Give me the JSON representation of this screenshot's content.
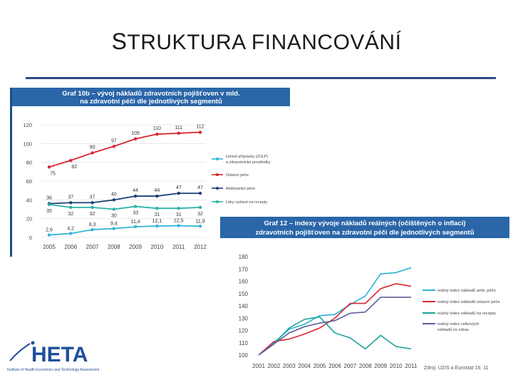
{
  "slide": {
    "title_first": "S",
    "title_rest": "TRUKTURA FINANCOVÁNÍ"
  },
  "logo": {
    "name": "HETA",
    "subtitle": "Institute of Health Economics and Technology Assessment"
  },
  "chart_data": [
    {
      "type": "line",
      "title": "Graf 10b – vývoj nákladů zdravotních pojišťoven v mld. na zdravotní péči dle jednotlivých segmentů",
      "x": [
        "2005",
        "2006",
        "2007",
        "2008",
        "2009",
        "2010",
        "2011",
        "2012"
      ],
      "ylim": [
        0,
        120
      ],
      "yticks": [
        0,
        20,
        40,
        60,
        80,
        100,
        120
      ],
      "grid": true,
      "legend_placement": "right",
      "series": [
        {
          "name": "Ústavní péče",
          "color": "#d7262f",
          "values": [
            75,
            82,
            90,
            97,
            105,
            110,
            111,
            112
          ]
        },
        {
          "name": "Ambulantní péče",
          "color": "#1f3f7a",
          "values": [
            36,
            37,
            37,
            40,
            44,
            44,
            47,
            47
          ]
        },
        {
          "name": "Léky vydané na recepty",
          "color": "#2ab3a6",
          "values": [
            35,
            32,
            32,
            30,
            33,
            31,
            31,
            32
          ]
        },
        {
          "name": "Léčivé přípravky (ZULP) a zdravotnické prostředky",
          "color": "#33b5d8",
          "values": [
            2.6,
            4.2,
            8.3,
            9.4,
            11.4,
            12.1,
            12.5,
            11.9
          ]
        }
      ],
      "data_labels": [
        {
          "series": 0,
          "labels": [
            "75",
            "82",
            "90",
            "97",
            "105",
            "110",
            "111",
            "112"
          ]
        },
        {
          "series": 1,
          "labels": [
            "36",
            "37",
            "37",
            "40",
            "44",
            "44",
            "47",
            "47"
          ]
        },
        {
          "series": 2,
          "labels": [
            "35",
            "32",
            "32",
            "30",
            "33",
            "31",
            "31",
            "32"
          ]
        },
        {
          "series": 3,
          "labels": [
            "2,6",
            "4,2",
            "8,3",
            "9,4",
            "11,4",
            "12,1",
            "12,5",
            "11,9"
          ]
        }
      ]
    },
    {
      "type": "line",
      "title": "Graf 12 – indexy vývoje nákladů reálných (očištěných o inflaci) zdravotních pojišťoven na zdravotní péči dle jednotlivých segmentů",
      "x": [
        "2001",
        "2002",
        "2003",
        "2004",
        "2005",
        "2006",
        "2007",
        "2008",
        "2009",
        "2010",
        "2011"
      ],
      "ylim": [
        100,
        180
      ],
      "yticks": [
        100,
        110,
        120,
        130,
        140,
        150,
        160,
        170,
        180
      ],
      "grid": false,
      "legend_placement": "right",
      "source": "Zdroj: ÚZIS a Eurostat 16. 11",
      "series": [
        {
          "name": "reálný index nákladů amb. péče",
          "color": "#2ab3d6",
          "values": [
            100,
            110,
            121,
            125,
            132,
            133,
            141,
            148,
            166,
            167,
            171
          ]
        },
        {
          "name": "reálný index nákladů ústavní péče",
          "color": "#d7262f",
          "values": [
            100,
            111,
            113,
            117,
            122,
            130,
            142,
            142,
            154,
            158,
            156
          ]
        },
        {
          "name": "reálný index nákladů na recepty",
          "color": "#1aa596",
          "values": [
            100,
            109,
            122,
            129,
            131,
            118,
            114,
            105,
            116,
            107,
            105
          ]
        },
        {
          "name": "reálný index celkových nákladů ve zdrav.",
          "color": "#5b5f9b",
          "values": [
            100,
            109,
            118,
            123,
            126,
            128,
            134,
            135,
            147,
            147,
            147
          ]
        }
      ]
    }
  ]
}
